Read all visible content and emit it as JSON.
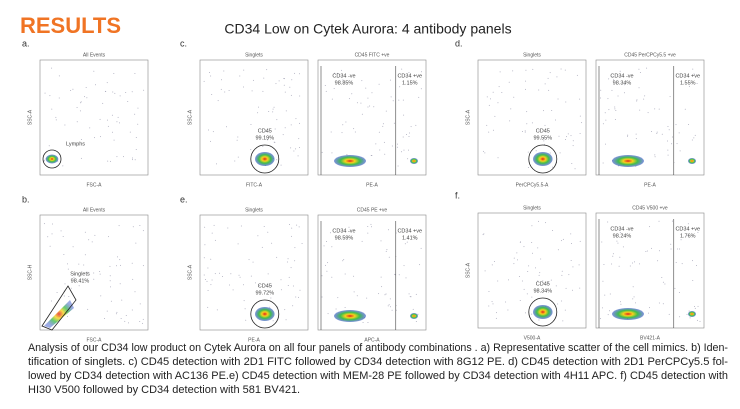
{
  "header": {
    "section": "RESULTS",
    "title": "CD34 Low on Cytek Aurora: 4 antibody panels"
  },
  "panels": [
    {
      "letter": "a.",
      "plots": [
        {
          "title": "All Events",
          "x_label": "FSC-A",
          "y_label": "SSC-A",
          "gates": [
            {
              "name": "Lymphs"
            }
          ]
        }
      ]
    },
    {
      "letter": "b.",
      "plots": [
        {
          "title": "All Events",
          "x_label": "FSC-A",
          "y_label": "SSC-H",
          "gates": [
            {
              "name": "Singlets",
              "percent": "98.41%"
            }
          ]
        }
      ]
    },
    {
      "letter": "c.",
      "plots": [
        {
          "title": "Singlets",
          "x_label": "FITC-A",
          "y_label": "SSC-A",
          "gates": [
            {
              "name": "CD45",
              "percent": "99.19%"
            }
          ]
        },
        {
          "title": "CD45 FITC +ve",
          "x_label": "PE-A",
          "gates": [
            {
              "name": "CD34 -ve",
              "percent": "98.85%"
            },
            {
              "name": "CD34 +ve",
              "percent": "1.15%"
            }
          ]
        }
      ]
    },
    {
      "letter": "d.",
      "plots": [
        {
          "title": "Singlets",
          "x_label": "PerCPCy5.5-A",
          "y_label": "SSC-A",
          "gates": [
            {
              "name": "CD45",
              "percent": "99.55%"
            }
          ]
        },
        {
          "title": "CD45 PerCPCy5.5 +ve",
          "x_label": "PE-A",
          "gates": [
            {
              "name": "CD34 -ve",
              "percent": "98.34%"
            },
            {
              "name": "CD34 +ve",
              "percent": "1.55%"
            }
          ]
        }
      ]
    },
    {
      "letter": "e.",
      "plots": [
        {
          "title": "Singlets",
          "x_label": "PE-A",
          "y_label": "SSC-A",
          "gates": [
            {
              "name": "CD45",
              "percent": "99.72%"
            }
          ]
        },
        {
          "title": "CD45 PE +ve",
          "x_label": "APC-A",
          "gates": [
            {
              "name": "CD34 -ve",
              "percent": "98.59%"
            },
            {
              "name": "CD34 +ve",
              "percent": "1.41%"
            }
          ]
        }
      ]
    },
    {
      "letter": "f.",
      "plots": [
        {
          "title": "Singlets",
          "x_label": "V500-A",
          "y_label": "SSC-A",
          "gates": [
            {
              "name": "CD45",
              "percent": "98.34%"
            }
          ]
        },
        {
          "title": "CD45 V500 +ve",
          "x_label": "BV421-A",
          "gates": [
            {
              "name": "CD34 -ve",
              "percent": "98.24%"
            },
            {
              "name": "CD34 +ve",
              "percent": "1.76%"
            }
          ]
        }
      ]
    }
  ],
  "caption": [
    "Analysis of our CD34 low product on Cytek Aurora on all four panels of antibody combinations . a) Representative scatter of the cell mimics. b) Iden-",
    "tification of singlets. c) CD45 detection with 2D1 FITC followed by CD34 detection with 8G12 PE. d) CD45 detection with 2D1 PerCPCy5.5 fol-",
    "lowed by CD34 detection with AC136 PE.e) CD45 detection with MEM-28 PE followed by CD34 detection with 4H11 APC. f) CD45 detection with",
    "HI30 V500 followed by CD34 detection with 581 BV421."
  ]
}
